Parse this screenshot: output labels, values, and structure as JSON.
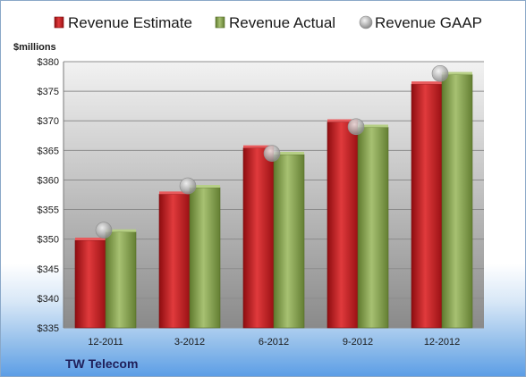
{
  "chart_data": {
    "type": "bar",
    "company": "TW Telecom",
    "ylabel": "$millions",
    "categories": [
      "12-2011",
      "3-2012",
      "6-2012",
      "9-2012",
      "12-2012"
    ],
    "ylim": [
      335,
      380
    ],
    "yticks": [
      335,
      340,
      345,
      350,
      355,
      360,
      365,
      370,
      375,
      380
    ],
    "ytick_labels": [
      "$335",
      "$340",
      "$345",
      "$350",
      "$355",
      "$360",
      "$365",
      "$370",
      "$375",
      "$380"
    ],
    "grid": true,
    "legend_position": "top",
    "series": [
      {
        "name": "Revenue Estimate",
        "kind": "bar",
        "color": "#d11f24",
        "values": [
          349.8,
          357.6,
          365.4,
          369.8,
          376.2
        ]
      },
      {
        "name": "Revenue Actual",
        "kind": "bar",
        "color": "#8ea957",
        "values": [
          351.2,
          358.7,
          364.3,
          368.9,
          377.8
        ]
      },
      {
        "name": "Revenue GAAP",
        "kind": "marker",
        "color": "#b8b8b8",
        "values": [
          351.5,
          359.0,
          364.5,
          369.0,
          378.0
        ]
      }
    ]
  }
}
